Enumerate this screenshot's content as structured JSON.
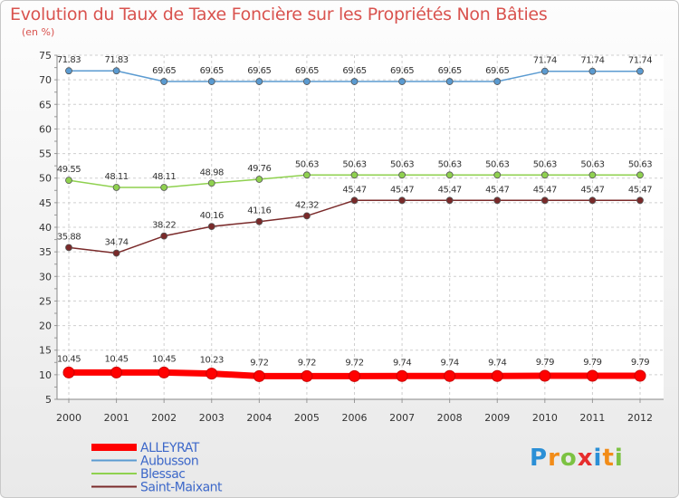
{
  "title": "Evolution du Taux de Taxe Foncière sur les Propriétés Non Bâties",
  "subtitle": "(en %)",
  "logo": {
    "letters": [
      "P",
      "r",
      "o",
      "x",
      "i",
      "t",
      "i"
    ],
    "colors": [
      "#2a8fd6",
      "#f28c18",
      "#7cc242",
      "#e62d2d",
      "#2a8fd6",
      "#f28c18",
      "#7cc242"
    ]
  },
  "chart_data": {
    "type": "line",
    "title": "Evolution du Taux de Taxe Foncière sur les Propriétés Non Bâties",
    "ylabel": "(en %)",
    "x": [
      "2000",
      "2001",
      "2002",
      "2003",
      "2004",
      "2005",
      "2006",
      "2007",
      "2008",
      "2009",
      "2010",
      "2011",
      "2012"
    ],
    "ylim": [
      5,
      75
    ],
    "yticks": [
      5,
      10,
      15,
      20,
      25,
      30,
      35,
      40,
      45,
      50,
      55,
      60,
      65,
      70,
      75
    ],
    "grid": true,
    "legend_position": "bottom-left",
    "series": [
      {
        "name": "ALLEYRAT",
        "color": "#ff0000",
        "values": [
          10.45,
          10.45,
          10.45,
          10.23,
          9.72,
          9.72,
          9.72,
          9.74,
          9.74,
          9.74,
          9.79,
          9.79,
          9.79
        ],
        "labels": [
          "10.45",
          "10.45",
          "10.45",
          "10.23",
          "9.72",
          "9.72",
          "9.72",
          "9.74",
          "9.74",
          "9.74",
          "9.79",
          "9.79",
          "9.79"
        ]
      },
      {
        "name": "Aubusson",
        "color": "#5b9bd1",
        "values": [
          71.83,
          71.83,
          69.65,
          69.65,
          69.65,
          69.65,
          69.65,
          69.65,
          69.65,
          69.65,
          71.74,
          71.74,
          71.74
        ],
        "labels": [
          "71.83",
          "71.83",
          "69.65",
          "69.65",
          "69.65",
          "69.65",
          "69.65",
          "69.65",
          "69.65",
          "69.65",
          "71.74",
          "71.74",
          "71.74"
        ]
      },
      {
        "name": "Blessac",
        "color": "#8fd14f",
        "values": [
          49.55,
          48.11,
          48.11,
          48.98,
          49.76,
          50.63,
          50.63,
          50.63,
          50.63,
          50.63,
          50.63,
          50.63,
          50.63
        ],
        "labels": [
          "49.55",
          "48.11",
          "48.11",
          "48.98",
          "49.76",
          "50.63",
          "50.63",
          "50.63",
          "50.63",
          "50.63",
          "50.63",
          "50.63",
          "50.63"
        ]
      },
      {
        "name": "Saint-Maixant",
        "color": "#7a2a2a",
        "values": [
          35.88,
          34.74,
          38.22,
          40.16,
          41.16,
          42.32,
          45.47,
          45.47,
          45.47,
          45.47,
          45.47,
          45.47,
          45.47
        ],
        "labels": [
          "35.88",
          "34.74",
          "38.22",
          "40.16",
          "41.16",
          "42.32",
          "45.47",
          "45.47",
          "45.47",
          "45.47",
          "45.47",
          "45.47",
          "45.47"
        ]
      }
    ]
  }
}
